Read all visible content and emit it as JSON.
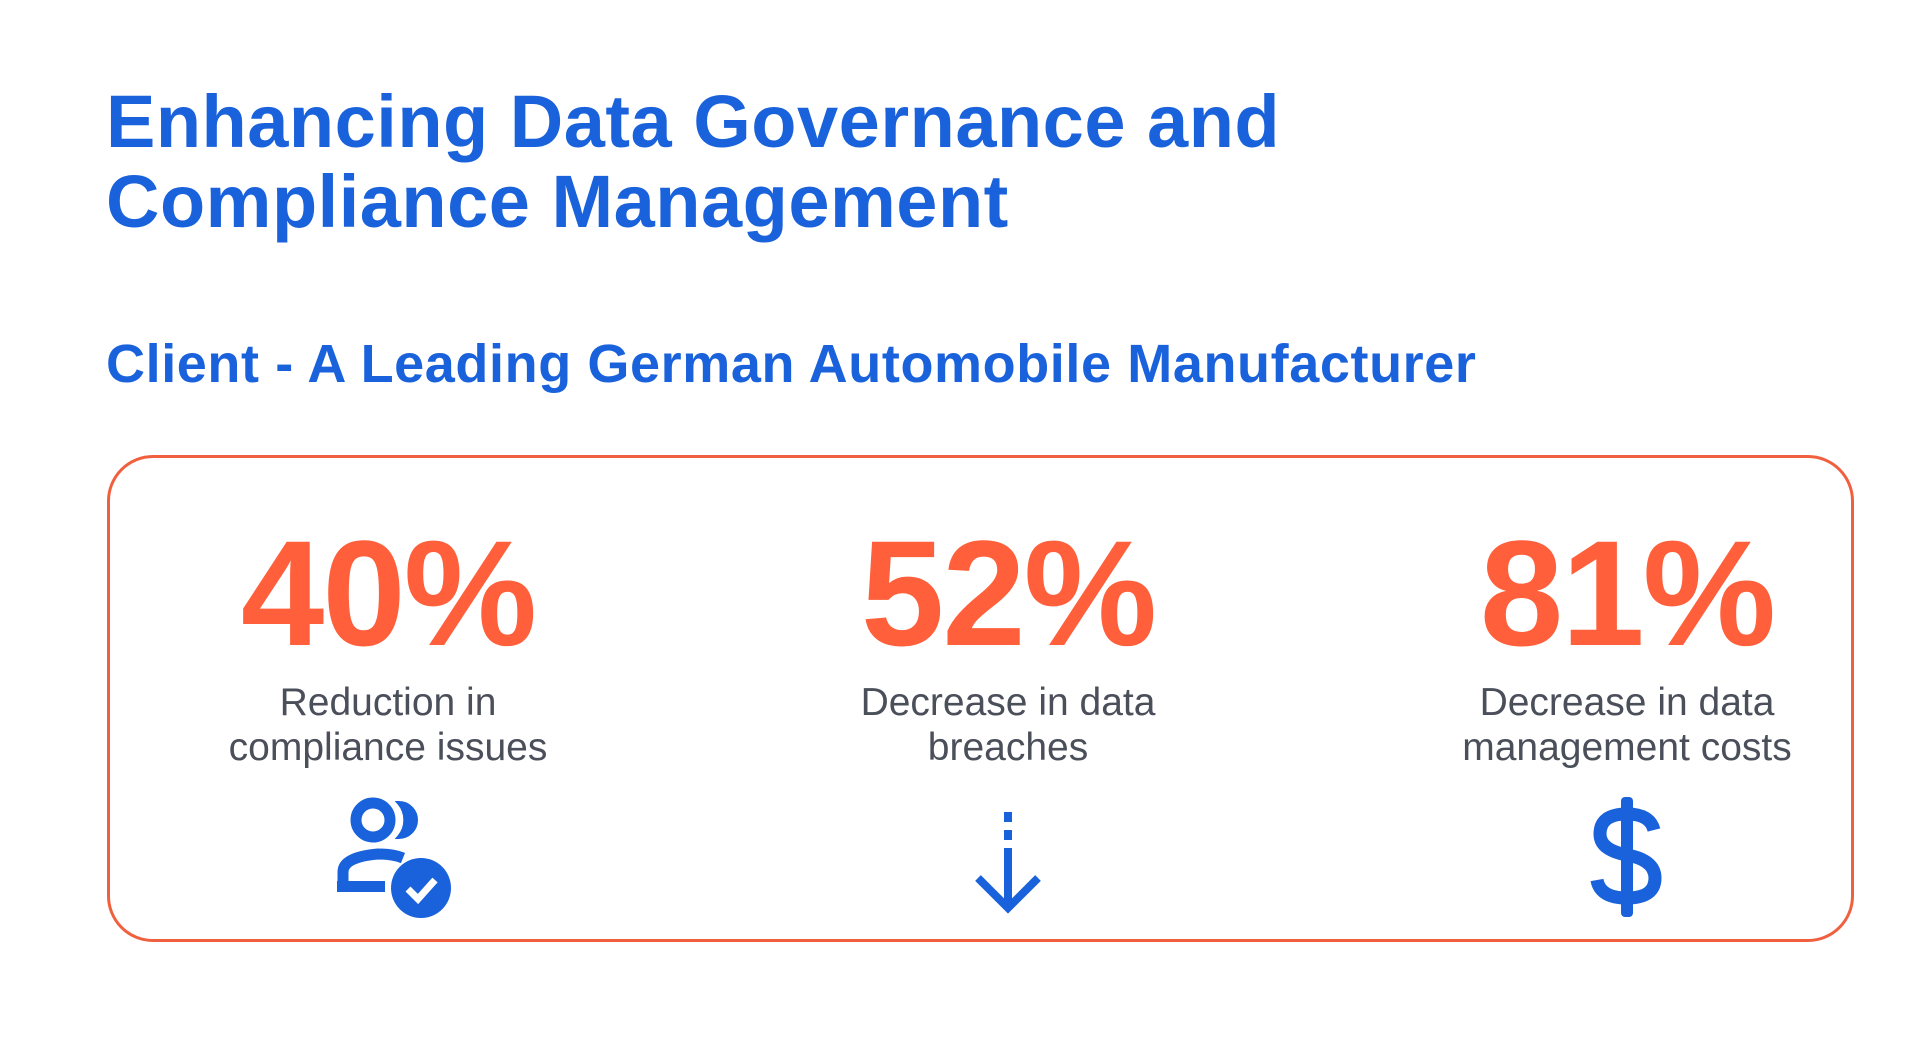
{
  "title_lines": [
    "Enhancing Data Governance and",
    "Compliance Management"
  ],
  "subtitle": "Client - A Leading German Automobile Manufacturer",
  "colors": {
    "brand_blue": "#1a62db",
    "accent_orange": "#ff5f3a",
    "border": "#f0603f",
    "text_gray": "#4a4f5a"
  },
  "stats": [
    {
      "value": "40%",
      "label_lines": [
        "Reduction in",
        "compliance issues"
      ],
      "icon": "users-check-icon"
    },
    {
      "value": "52%",
      "label_lines": [
        "Decrease in data",
        "breaches"
      ],
      "icon": "arrow-down-icon"
    },
    {
      "value": "81%",
      "label_lines": [
        "Decrease in data",
        "management costs"
      ],
      "icon": "dollar-icon"
    }
  ]
}
